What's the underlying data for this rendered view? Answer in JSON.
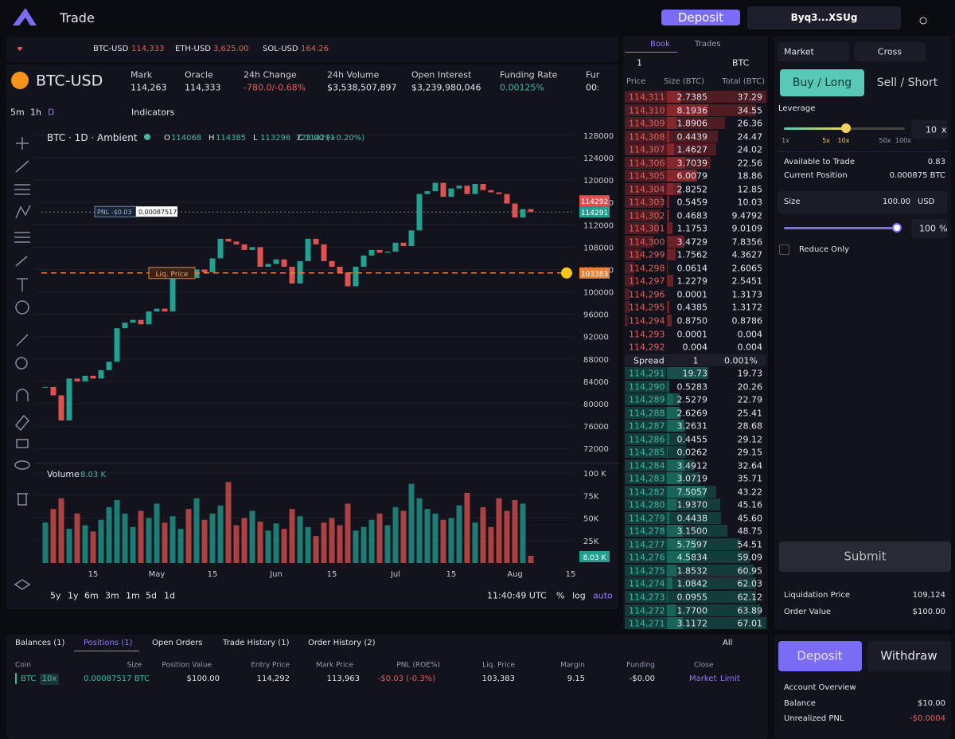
{
  "header": {
    "title": "Trade",
    "deposit": "Deposit",
    "wallet": "Byq3...XSUg"
  },
  "tickers": [
    {
      "symbol": "BTC-USD",
      "price": "114,333"
    },
    {
      "symbol": "ETH-USD",
      "price": "3,625.00"
    },
    {
      "symbol": "SOL-USD",
      "price": "164.26"
    }
  ],
  "market": {
    "symbol": "BTC-USD",
    "stats": [
      {
        "label": "Mark",
        "value": "114,263"
      },
      {
        "label": "Oracle",
        "value": "114,333"
      },
      {
        "label": "24h Change",
        "value": "-780.0/-0.68%"
      },
      {
        "label": "24h Volume",
        "value": "$3,538,507,897"
      },
      {
        "label": "Open Interest",
        "value": "$3,239,980,046"
      },
      {
        "label": "Funding Rate",
        "value": "0.00125%"
      },
      {
        "label": "Fur",
        "value": "00:"
      }
    ]
  },
  "chart_toolbar": {
    "intervals": [
      "5m",
      "1h",
      "D"
    ],
    "indicators": "Indicators",
    "ranges": [
      "5y",
      "1y",
      "6m",
      "3m",
      "1m",
      "5d",
      "1d"
    ],
    "time": "11:40:49 UTC",
    "scale_options": [
      "%",
      "log",
      "auto"
    ]
  },
  "chart_data": {
    "type": "candlestick",
    "title": "BTC · 1D · Ambient",
    "ohlc": [
      {
        "key": "O",
        "value": 114068
      },
      {
        "key": "H",
        "value": 114385
      },
      {
        "key": "L",
        "value": 113296
      },
      {
        "key": "C",
        "value": 114291
      }
    ],
    "change": "223.00 (+0.20%)",
    "categories": [
      null,
      null,
      null,
      null,
      null,
      null,
      "15",
      null,
      null,
      null,
      null,
      null,
      null,
      null,
      "May",
      null,
      null,
      null,
      null,
      null,
      null,
      "15",
      null,
      null,
      null,
      null,
      null,
      null,
      null,
      "Jun",
      null,
      null,
      null,
      null,
      null,
      null,
      "15",
      null,
      null,
      null,
      null,
      null,
      null,
      null,
      "Jul",
      null,
      null,
      null,
      null,
      null,
      null,
      "15",
      null,
      null,
      null,
      null,
      null,
      null,
      null,
      "Aug",
      null,
      null,
      null,
      null,
      null,
      null,
      "15"
    ],
    "closes": [
      83000,
      81500,
      77000,
      84500,
      84000,
      85000,
      84500,
      86000,
      87500,
      93500,
      94500,
      95000,
      94200,
      96500,
      97000,
      96500,
      103500,
      103800,
      102500,
      104000,
      103500,
      106000,
      109500,
      109000,
      108500,
      107500,
      108000,
      104500,
      105000,
      105800,
      104500,
      101500,
      105500,
      109500,
      108500,
      105500,
      104500,
      103500,
      101000,
      104500,
      106500,
      107500,
      107000,
      107200,
      108800,
      108200,
      111000,
      117500,
      118000,
      119500,
      117000,
      118500,
      119000,
      117500,
      119300,
      118200,
      117800,
      117500,
      115800,
      113300,
      114800,
      114291,
      null,
      null,
      null,
      null,
      null
    ],
    "volumes": [
      45,
      60,
      72,
      38,
      55,
      42,
      35,
      48,
      62,
      70,
      55,
      40,
      58,
      50,
      66,
      45,
      52,
      38,
      60,
      72,
      48,
      55,
      64,
      90,
      42,
      50,
      58,
      46,
      36,
      44,
      38,
      60,
      52,
      40,
      30,
      45,
      50,
      42,
      66,
      36,
      40,
      48,
      55,
      42,
      62,
      58,
      88,
      72,
      60,
      55,
      48,
      50,
      64,
      78,
      45,
      62,
      40,
      72,
      58,
      70,
      66,
      8.03,
      null,
      null,
      null,
      null,
      null
    ],
    "up_color": "#22a090",
    "down_color": "#e0524f",
    "ylim": [
      69600,
      129700
    ],
    "yticks": [
      72000,
      76000,
      80000,
      84000,
      88000,
      92000,
      96000,
      100000,
      104000,
      108000,
      112000,
      116000,
      120000,
      124000,
      128000
    ],
    "volume_label": "Volume",
    "volume_value_label": "8.03 K",
    "volume_ylim": [
      0,
      100
    ],
    "volume_yticks": [
      {
        "value": 25,
        "label": "25K"
      },
      {
        "value": 50,
        "label": "50K"
      },
      {
        "value": 75,
        "label": "75K"
      },
      {
        "value": 100,
        "label": "100 K"
      }
    ],
    "mark_price": 114292,
    "last_price": 114291,
    "liq_price": 103383,
    "liq_label": "Liq. Price",
    "pnl_label": "PNL -$0.03",
    "position_size": "0.00087517"
  },
  "order_book": {
    "tabs": [
      "Book",
      "Trades"
    ],
    "tick": "1",
    "unit": "BTC",
    "headers": [
      "Price",
      "Size (BTC)",
      "Total (BTC)"
    ],
    "asks": [
      [
        "114,311",
        "2.7385",
        "37.29"
      ],
      [
        "114,310",
        "8.1936",
        "34.55"
      ],
      [
        "114,309",
        "1.8906",
        "26.36"
      ],
      [
        "114,308",
        "0.4439",
        "24.47"
      ],
      [
        "114,307",
        "1.4627",
        "24.02"
      ],
      [
        "114,306",
        "3.7039",
        "22.56"
      ],
      [
        "114,305",
        "6.0079",
        "18.86"
      ],
      [
        "114,304",
        "2.8252",
        "12.85"
      ],
      [
        "114,303",
        "0.5459",
        "10.03"
      ],
      [
        "114,302",
        "0.4683",
        "9.4792"
      ],
      [
        "114,301",
        "1.1753",
        "9.0109"
      ],
      [
        "114,300",
        "3.4729",
        "7.8356"
      ],
      [
        "114,299",
        "1.7562",
        "4.3627"
      ],
      [
        "114,298",
        "0.0614",
        "2.6065"
      ],
      [
        "114,297",
        "1.2279",
        "2.5451"
      ],
      [
        "114,296",
        "0.0001",
        "1.3173"
      ],
      [
        "114,295",
        "0.4385",
        "1.3172"
      ],
      [
        "114,294",
        "0.8750",
        "0.8786"
      ],
      [
        "114,293",
        "0.0001",
        "0.004"
      ],
      [
        "114,292",
        "0.004",
        "0.004"
      ]
    ],
    "spread": [
      "Spread",
      "1",
      "0.001%"
    ],
    "bids": [
      [
        "114,291",
        "19.73",
        "19.73"
      ],
      [
        "114,290",
        "0.5283",
        "20.26"
      ],
      [
        "114,289",
        "2.5279",
        "22.79"
      ],
      [
        "114,288",
        "2.6269",
        "25.41"
      ],
      [
        "114,287",
        "3.2631",
        "28.68"
      ],
      [
        "114,286",
        "0.4455",
        "29.12"
      ],
      [
        "114,285",
        "0.0262",
        "29.15"
      ],
      [
        "114,284",
        "3.4912",
        "32.64"
      ],
      [
        "114,283",
        "3.0719",
        "35.71"
      ],
      [
        "114,282",
        "7.5057",
        "43.22"
      ],
      [
        "114,280",
        "1.9370",
        "45.16"
      ],
      [
        "114,279",
        "0.4438",
        "45.60"
      ],
      [
        "114,278",
        "3.1500",
        "48.75"
      ],
      [
        "114,277",
        "5.7597",
        "54.51"
      ],
      [
        "114,276",
        "4.5834",
        "59.09"
      ],
      [
        "114,275",
        "1.8532",
        "60.95"
      ],
      [
        "114,274",
        "1.0842",
        "62.03"
      ],
      [
        "114,273",
        "0.0955",
        "62.12"
      ],
      [
        "114,272",
        "1.7700",
        "63.89"
      ],
      [
        "114,271",
        "3.1172",
        "67.01"
      ]
    ]
  },
  "order_form": {
    "order_type": "Market",
    "margin_mode": "Cross",
    "buy": "Buy / Long",
    "sell": "Sell / Short",
    "leverage_label": "Leverage",
    "leverage_marks": [
      "1x",
      "5x",
      "10x",
      "50x",
      "100x"
    ],
    "leverage_value": "10",
    "leverage_unit": "x",
    "available_label": "Available to Trade",
    "available_value": "0.83",
    "position_label": "Current Position",
    "position_value": "0.000875 BTC",
    "size_label": "Size",
    "size_value": "100.00",
    "size_unit": "USD",
    "size_pct": "100",
    "pct_unit": "%",
    "reduce_only": "Reduce Only",
    "submit": "Submit",
    "liq_label": "Liquidation Price",
    "liq_value": "109,124",
    "order_value_label": "Order Value",
    "order_value": "$100.00"
  },
  "account": {
    "deposit": "Deposit",
    "withdraw": "Withdraw",
    "title": "Account Overview",
    "balance_label": "Balance",
    "balance": "$10.00",
    "upnl_label": "Unrealized PNL",
    "upnl": "-$0.0004"
  },
  "positions": {
    "tabs": [
      "Balances (1)",
      "Positions (1)",
      "Open Orders",
      "Trade History (1)",
      "Order History (2)"
    ],
    "filter": "All",
    "columns": [
      "Coin",
      "Size",
      "Position Value",
      "Entry Price",
      "Mark Price",
      "PNL (ROE%)",
      "Liq. Price",
      "Margin",
      "Funding",
      "Close"
    ],
    "row": {
      "coin": "BTC",
      "leverage": "10x",
      "size": "0.00087517 BTC",
      "value": "$100.00",
      "entry": "114,292",
      "mark": "113,963",
      "pnl": "-$0.03 (-0.3%)",
      "liq": "103,383",
      "margin": "9.15",
      "funding": "-$0.00",
      "close_market": "Market",
      "close_limit": "Limit"
    }
  }
}
